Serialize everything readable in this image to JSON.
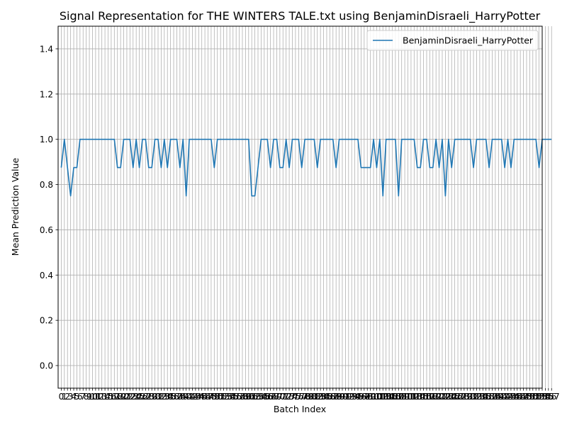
{
  "chart_data": {
    "type": "line",
    "title": "Signal Representation for THE WINTERS TALE.txt using BenjaminDisraeli_HarryPotter",
    "xlabel": "Batch Index",
    "ylabel": "Mean Prediction Value",
    "xlim": [
      -1,
      154
    ],
    "ylim": [
      -0.1,
      1.5
    ],
    "yticks": [
      "0.0",
      "0.2",
      "0.4",
      "0.6",
      "0.8",
      "1.0",
      "1.2",
      "1.4"
    ],
    "ytick_values": [
      0.0,
      0.2,
      0.4,
      0.6,
      0.8,
      1.0,
      1.2,
      1.4
    ],
    "xtick_labels_note": "one tick label per batch index 0..153, overlapping",
    "grid": true,
    "legend_position": "upper-right",
    "series": [
      {
        "name": "BenjaminDisraeli_HarryPotter",
        "color": "#1f77b4",
        "x_start": 0,
        "values": [
          0.875,
          1.0,
          0.875,
          0.75,
          0.875,
          0.875,
          1.0,
          1.0,
          1.0,
          1.0,
          1.0,
          1.0,
          1.0,
          1.0,
          1.0,
          1.0,
          1.0,
          1.0,
          0.875,
          0.875,
          1.0,
          1.0,
          1.0,
          0.875,
          1.0,
          0.875,
          1.0,
          1.0,
          0.875,
          0.875,
          1.0,
          1.0,
          0.875,
          1.0,
          0.875,
          1.0,
          1.0,
          1.0,
          0.875,
          1.0,
          0.75,
          1.0,
          1.0,
          1.0,
          1.0,
          1.0,
          1.0,
          1.0,
          1.0,
          0.875,
          1.0,
          1.0,
          1.0,
          1.0,
          1.0,
          1.0,
          1.0,
          1.0,
          1.0,
          1.0,
          1.0,
          0.75,
          0.75,
          0.875,
          1.0,
          1.0,
          1.0,
          0.875,
          1.0,
          1.0,
          0.875,
          0.875,
          1.0,
          0.875,
          1.0,
          1.0,
          1.0,
          0.875,
          1.0,
          1.0,
          1.0,
          1.0,
          0.875,
          1.0,
          1.0,
          1.0,
          1.0,
          1.0,
          0.875,
          1.0,
          1.0,
          1.0,
          1.0,
          1.0,
          1.0,
          1.0,
          0.875,
          0.875,
          0.875,
          0.875,
          1.0,
          0.875,
          1.0,
          0.75,
          1.0,
          1.0,
          1.0,
          1.0,
          0.75,
          1.0,
          1.0,
          1.0,
          1.0,
          1.0,
          0.875,
          0.875,
          1.0,
          1.0,
          0.875,
          0.875,
          1.0,
          0.875,
          1.0,
          0.75,
          1.0,
          0.875,
          1.0,
          1.0,
          1.0,
          1.0,
          1.0,
          1.0,
          0.875,
          1.0,
          1.0,
          1.0,
          1.0,
          0.875,
          1.0,
          1.0,
          1.0,
          1.0,
          0.875,
          1.0,
          0.875,
          1.0,
          1.0,
          1.0,
          1.0,
          1.0,
          1.0,
          1.0,
          1.0,
          0.875,
          1.0,
          1.0,
          1.0,
          1.0
        ]
      }
    ]
  }
}
